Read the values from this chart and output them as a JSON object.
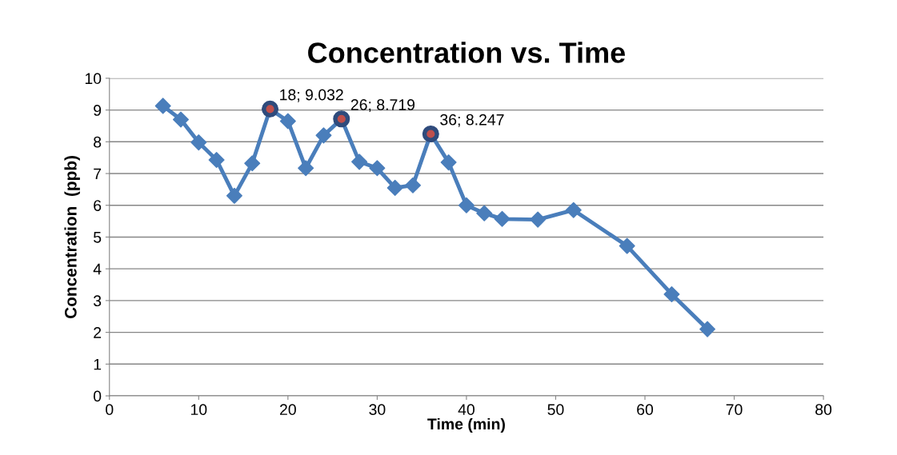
{
  "chart_data": {
    "type": "line",
    "title": "Concentration vs. Time",
    "xlabel": "Time (min)",
    "ylabel": "Concentration  (ppb)",
    "xlim": [
      0,
      80
    ],
    "xticks": [
      0,
      10,
      20,
      30,
      40,
      50,
      60,
      70,
      80
    ],
    "ylim": [
      0,
      10
    ],
    "yticks": [
      0,
      1,
      2,
      3,
      4,
      5,
      6,
      7,
      8,
      9,
      10
    ],
    "grid": "y",
    "legend": false,
    "line_style": "solid",
    "series": [
      {
        "type": "line",
        "color": "#4a7ebb",
        "marker": "diamond",
        "x": [
          6,
          8,
          10,
          12,
          14,
          16,
          18,
          20,
          22,
          24,
          26,
          28,
          30,
          32,
          34,
          36,
          38,
          40,
          42,
          44,
          48,
          52,
          58,
          63,
          67
        ],
        "values": [
          9.13,
          8.7,
          7.98,
          7.43,
          6.3,
          7.32,
          9.03,
          8.65,
          7.17,
          8.2,
          8.72,
          7.37,
          7.17,
          6.55,
          6.63,
          8.25,
          7.35,
          6.0,
          5.75,
          5.57,
          5.55,
          5.85,
          4.72,
          3.2,
          2.1
        ]
      },
      {
        "type": "scatter",
        "color": "#2f4b7c",
        "marker": "circle",
        "x": [
          18,
          26,
          36
        ],
        "values": [
          9.032,
          8.719,
          8.247
        ]
      }
    ],
    "annotations": [
      {
        "text": "18; 9.032",
        "x": 18,
        "y": 9.032
      },
      {
        "text": "26; 8.719",
        "x": 26,
        "y": 8.719
      },
      {
        "text": "36; 8.247",
        "x": 36,
        "y": 8.247
      }
    ]
  }
}
